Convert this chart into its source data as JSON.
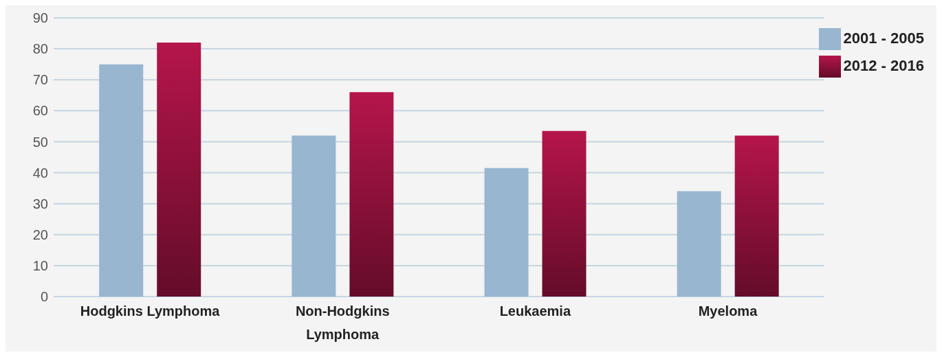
{
  "chart_data": {
    "type": "bar",
    "categories": [
      "Hodgkins Lymphoma",
      "Non-Hodgkins Lymphoma",
      "Leukaemia",
      "Myeloma"
    ],
    "series": [
      {
        "name": "2001 - 2005",
        "color": "#98b6d0",
        "values": [
          75,
          52,
          41.5,
          34
        ]
      },
      {
        "name": "2012 - 2016",
        "color": "#b5154b",
        "values": [
          82,
          66,
          53.5,
          52
        ]
      }
    ],
    "ylim": [
      0,
      90
    ],
    "yticks": [
      0,
      10,
      20,
      30,
      40,
      50,
      60,
      70,
      80,
      90
    ],
    "grid": "y",
    "legend": "top right"
  }
}
